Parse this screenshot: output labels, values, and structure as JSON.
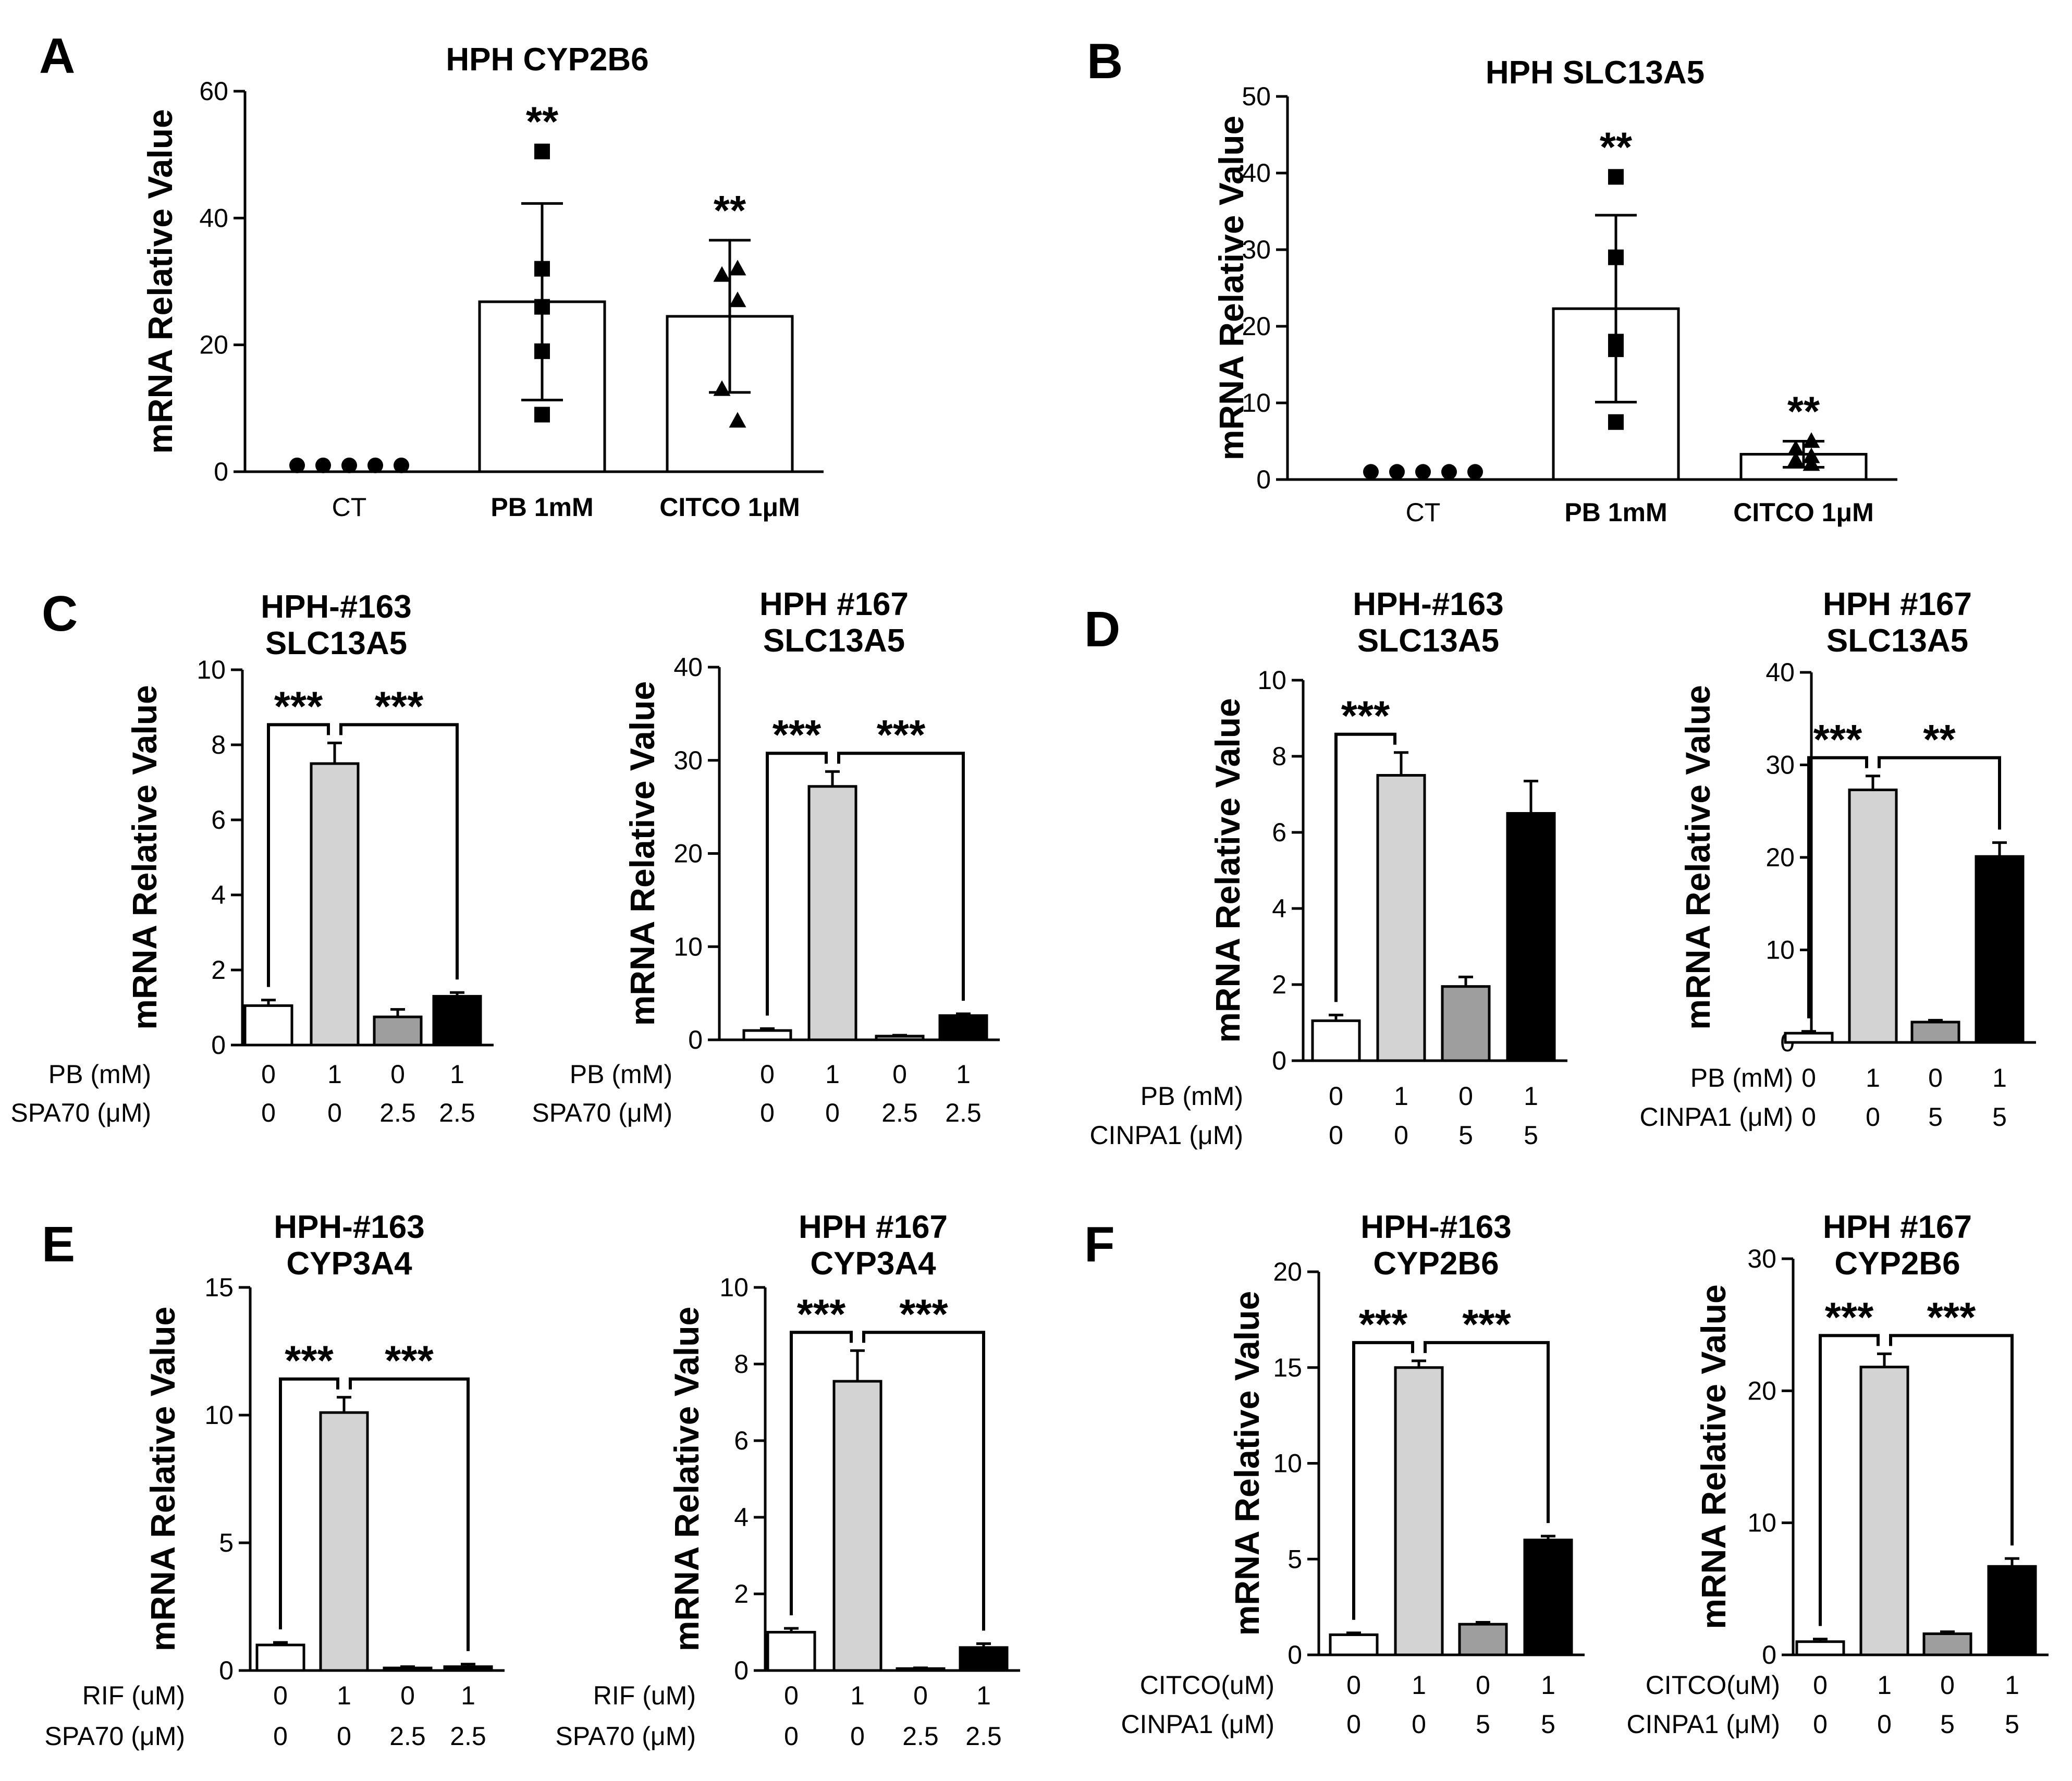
{
  "chart_data": [
    {
      "id": "A",
      "type": "bar",
      "panel_label": "A",
      "title": "HPH CYP2B6",
      "ylabel": "mRNA Relative Value",
      "ylim": [
        0,
        60
      ],
      "yticks": [
        0,
        20,
        40,
        60
      ],
      "categories": [
        "CT",
        "PB 1mM",
        "CITCO 1μM"
      ],
      "values": [
        1.0,
        26.8,
        24.5
      ],
      "errors": [
        0.0,
        15.5,
        12.0
      ],
      "fills": [
        "#ffffff",
        "#ffffff",
        "#ffffff"
      ],
      "points": [
        [
          1,
          1,
          1,
          1,
          1
        ],
        [
          50.5,
          32,
          26,
          19,
          9
        ],
        [
          32,
          31,
          27,
          13,
          8
        ]
      ],
      "markers": [
        "circle",
        "square",
        "triangle"
      ],
      "significance": [
        "",
        "**",
        "**"
      ]
    },
    {
      "id": "B",
      "type": "bar",
      "panel_label": "B",
      "title": "HPH SLC13A5",
      "ylabel": "mRNA Relative Value",
      "ylim": [
        0,
        50
      ],
      "yticks": [
        0,
        10,
        20,
        30,
        40,
        50
      ],
      "categories": [
        "CT",
        "PB 1mM",
        "CITCO 1μM"
      ],
      "values": [
        1.0,
        22.3,
        3.3
      ],
      "errors": [
        0.0,
        12.2,
        1.7
      ],
      "fills": [
        "#ffffff",
        "#ffffff",
        "#ffffff"
      ],
      "points": [
        [
          1,
          1,
          1,
          1,
          1
        ],
        [
          39.5,
          29,
          18,
          17,
          7.5
        ],
        [
          5,
          4,
          3,
          2.5,
          2
        ]
      ],
      "markers": [
        "circle",
        "square",
        "triangle"
      ],
      "significance": [
        "",
        "**",
        "**"
      ]
    },
    {
      "id": "C1",
      "type": "bar",
      "panel_label": "C",
      "title_lines": [
        "HPH-#163",
        "SLC13A5"
      ],
      "ylabel": "mRNA Relative Value",
      "ylim": [
        0,
        10
      ],
      "yticks": [
        0,
        2,
        4,
        6,
        8,
        10
      ],
      "values": [
        1.05,
        7.5,
        0.75,
        1.3
      ],
      "errors": [
        0.15,
        0.55,
        0.2,
        0.1
      ],
      "fills": [
        "#ffffff",
        "#d3d3d3",
        "#9e9e9e",
        "#000000"
      ],
      "row_labels": [
        "PB (mM)",
        "SPA70 (μM)"
      ],
      "rows": [
        [
          "0",
          "1",
          "0",
          "1"
        ],
        [
          "0",
          "0",
          "2.5",
          "2.5"
        ]
      ],
      "brackets": [
        {
          "from": 0,
          "to": 1,
          "label": "***"
        },
        {
          "from": 1,
          "to": 3,
          "label": "***"
        }
      ]
    },
    {
      "id": "C2",
      "type": "bar",
      "title_lines": [
        "HPH #167",
        "SLC13A5"
      ],
      "ylabel": "mRNA Relative Value",
      "ylim": [
        0,
        40
      ],
      "yticks": [
        0,
        10,
        20,
        30,
        40
      ],
      "values": [
        1.0,
        27.2,
        0.4,
        2.6
      ],
      "errors": [
        0.2,
        1.6,
        0.1,
        0.2
      ],
      "fills": [
        "#ffffff",
        "#d3d3d3",
        "#9e9e9e",
        "#000000"
      ],
      "row_labels": [
        "PB (mM)",
        "SPA70 (μM)"
      ],
      "rows": [
        [
          "0",
          "1",
          "0",
          "1"
        ],
        [
          "0",
          "0",
          "2.5",
          "2.5"
        ]
      ],
      "brackets": [
        {
          "from": 0,
          "to": 1,
          "label": "***"
        },
        {
          "from": 1,
          "to": 3,
          "label": "***"
        }
      ]
    },
    {
      "id": "D1",
      "type": "bar",
      "panel_label": "D",
      "title_lines": [
        "HPH-#163",
        "SLC13A5"
      ],
      "ylabel": "mRNA Relative Value",
      "ylim": [
        0,
        10
      ],
      "yticks": [
        0,
        2,
        4,
        6,
        8,
        10
      ],
      "values": [
        1.05,
        7.5,
        1.95,
        6.5
      ],
      "errors": [
        0.15,
        0.6,
        0.25,
        0.85
      ],
      "fills": [
        "#ffffff",
        "#d3d3d3",
        "#9e9e9e",
        "#000000"
      ],
      "row_labels": [
        "PB (mM)",
        "CINPA1 (μM)"
      ],
      "rows": [
        [
          "0",
          "1",
          "0",
          "1"
        ],
        [
          "0",
          "0",
          "5",
          "5"
        ]
      ],
      "brackets": [
        {
          "from": 0,
          "to": 1,
          "label": "***"
        }
      ]
    },
    {
      "id": "D2",
      "type": "bar",
      "title_lines": [
        "HPH #167",
        "SLC13A5"
      ],
      "ylabel": "mRNA Relative Value",
      "ylim": [
        0,
        40
      ],
      "yticks": [
        0,
        10,
        20,
        30,
        40
      ],
      "values": [
        1.0,
        27.3,
        2.2,
        20.1
      ],
      "errors": [
        0.2,
        1.5,
        0.2,
        1.5
      ],
      "fills": [
        "#ffffff",
        "#d3d3d3",
        "#9e9e9e",
        "#000000"
      ],
      "row_labels": [
        "PB (mM)",
        "CINPA1 (μM)"
      ],
      "rows": [
        [
          "0",
          "1",
          "0",
          "1"
        ],
        [
          "0",
          "0",
          "5",
          "5"
        ]
      ],
      "brackets": [
        {
          "from": 0,
          "to": 1,
          "label": "***"
        },
        {
          "from": 1,
          "to": 3,
          "label": "**"
        }
      ]
    },
    {
      "id": "E1",
      "type": "bar",
      "panel_label": "E",
      "title_lines": [
        "HPH-#163",
        "CYP3A4"
      ],
      "ylabel": "mRNA Relative Value",
      "ylim": [
        0,
        15
      ],
      "yticks": [
        0,
        5,
        10,
        15
      ],
      "values": [
        1.0,
        10.1,
        0.1,
        0.15
      ],
      "errors": [
        0.1,
        0.6,
        0.05,
        0.1
      ],
      "fills": [
        "#ffffff",
        "#d3d3d3",
        "#9e9e9e",
        "#000000"
      ],
      "row_labels": [
        "RIF (uM)",
        "SPA70 (μM)"
      ],
      "rows": [
        [
          "0",
          "1",
          "0",
          "1"
        ],
        [
          "0",
          "0",
          "2.5",
          "2.5"
        ]
      ],
      "brackets": [
        {
          "from": 0,
          "to": 1,
          "label": "***"
        },
        {
          "from": 1,
          "to": 3,
          "label": "***"
        }
      ]
    },
    {
      "id": "E2",
      "type": "bar",
      "title_lines": [
        "HPH #167",
        "CYP3A4"
      ],
      "ylabel": "mRNA Relative Value",
      "ylim": [
        0,
        10
      ],
      "yticks": [
        0,
        2,
        4,
        6,
        8,
        10
      ],
      "values": [
        1.0,
        7.55,
        0.05,
        0.6
      ],
      "errors": [
        0.1,
        0.8,
        0.02,
        0.1
      ],
      "fills": [
        "#ffffff",
        "#d3d3d3",
        "#9e9e9e",
        "#000000"
      ],
      "row_labels": [
        "RIF (uM)",
        "SPA70 (μM)"
      ],
      "rows": [
        [
          "0",
          "1",
          "0",
          "1"
        ],
        [
          "0",
          "0",
          "2.5",
          "2.5"
        ]
      ],
      "brackets": [
        {
          "from": 0,
          "to": 1,
          "label": "***"
        },
        {
          "from": 1,
          "to": 3,
          "label": "***"
        }
      ]
    },
    {
      "id": "F1",
      "type": "bar",
      "panel_label": "F",
      "title_lines": [
        "HPH-#163",
        "CYP2B6"
      ],
      "ylabel": "mRNA Relative Value",
      "ylim": [
        0,
        20
      ],
      "yticks": [
        0,
        5,
        10,
        15,
        20
      ],
      "values": [
        1.05,
        15.0,
        1.6,
        6.0
      ],
      "errors": [
        0.1,
        0.35,
        0.1,
        0.2
      ],
      "fills": [
        "#ffffff",
        "#d3d3d3",
        "#9e9e9e",
        "#000000"
      ],
      "row_labels": [
        "CITCO(uM)",
        "CINPA1 (μM)"
      ],
      "rows": [
        [
          "0",
          "1",
          "0",
          "1"
        ],
        [
          "0",
          "0",
          "5",
          "5"
        ]
      ],
      "brackets": [
        {
          "from": 0,
          "to": 1,
          "label": "***"
        },
        {
          "from": 1,
          "to": 3,
          "label": "***"
        }
      ]
    },
    {
      "id": "F2",
      "type": "bar",
      "title_lines": [
        "HPH #167",
        "CYP2B6"
      ],
      "ylabel": "mRNA Relative Value",
      "ylim": [
        0,
        30
      ],
      "yticks": [
        0,
        10,
        20,
        30
      ],
      "values": [
        1.0,
        21.8,
        1.6,
        6.7
      ],
      "errors": [
        0.2,
        1.0,
        0.15,
        0.6
      ],
      "fills": [
        "#ffffff",
        "#d3d3d3",
        "#9e9e9e",
        "#000000"
      ],
      "row_labels": [
        "CITCO(uM)",
        "CINPA1 (μM)"
      ],
      "rows": [
        [
          "0",
          "1",
          "0",
          "1"
        ],
        [
          "0",
          "0",
          "5",
          "5"
        ]
      ],
      "brackets": [
        {
          "from": 0,
          "to": 1,
          "label": "***"
        },
        {
          "from": 1,
          "to": 3,
          "label": "***"
        }
      ]
    }
  ]
}
